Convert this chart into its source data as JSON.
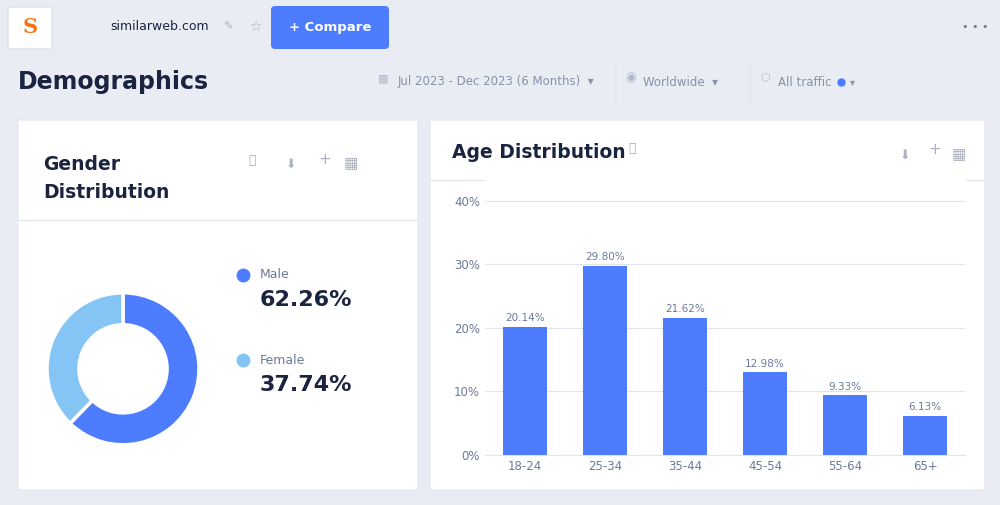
{
  "bg_color": "#eaecf3",
  "card_color": "#ffffff",
  "header_bg": "#ffffff",
  "title_text": "Demographics",
  "date_range": "Jul 2023 - Dec 2023 (6 Months)",
  "region": "Worldwide",
  "traffic": "All traffic",
  "gender_title_line1": "Gender",
  "gender_title_line2": "Distribution",
  "age_title": "Age Distribution",
  "male_pct": 62.26,
  "female_pct": 37.74,
  "male_color": "#4d7cfe",
  "female_color": "#85c5f5",
  "age_categories": [
    "18-24",
    "25-34",
    "35-44",
    "45-54",
    "55-64",
    "65+"
  ],
  "age_values": [
    20.14,
    29.8,
    21.62,
    12.98,
    9.33,
    6.13
  ],
  "bar_color": "#4d7cfe",
  "yticks": [
    0,
    10,
    20,
    30,
    40
  ],
  "ytick_labels": [
    "0%",
    "10%",
    "20%",
    "30%",
    "40%"
  ],
  "compare_btn_color": "#4d7cfe",
  "compare_btn_text": "+ Compare",
  "separator_color": "#e2e5ed",
  "text_dark": "#1a2340",
  "text_mid": "#6b7a99",
  "text_light": "#aab0c0"
}
